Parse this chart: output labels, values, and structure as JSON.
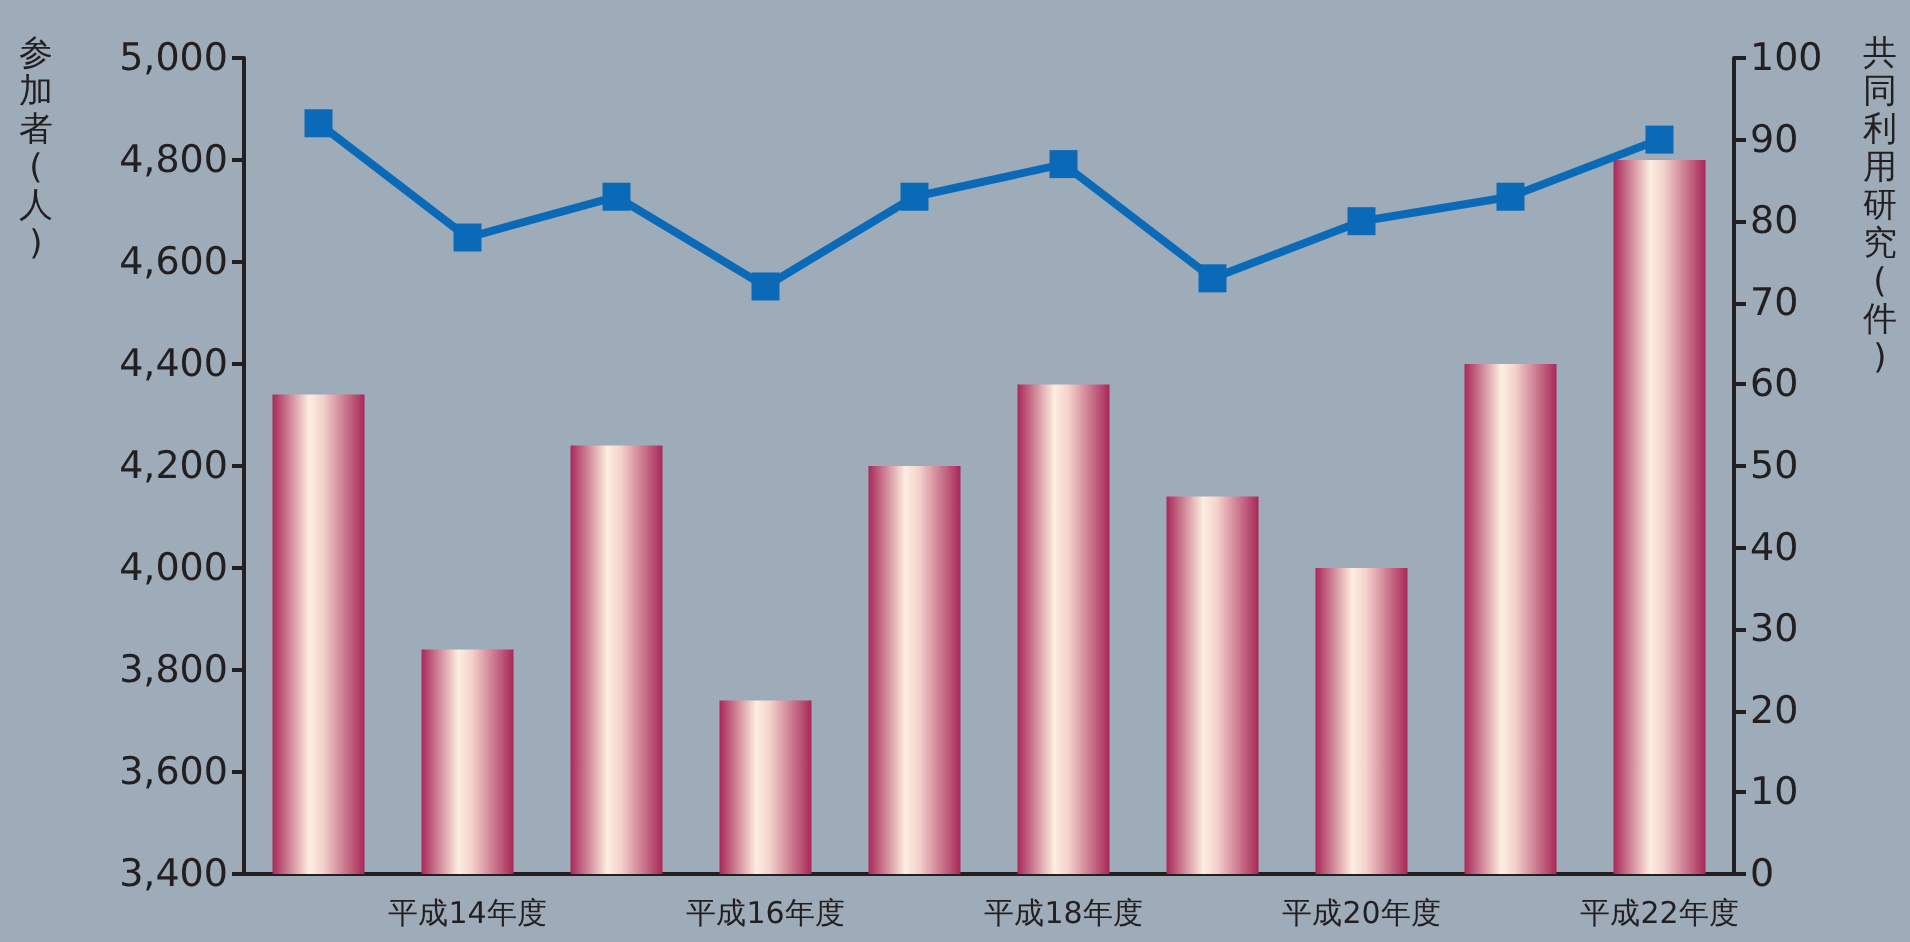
{
  "chart_data": {
    "type": "bar",
    "ylabel": "参加者(人)",
    "y2label": "共同利用研究(件)",
    "categories": [
      null,
      "平成14年度",
      null,
      "平成16年度",
      null,
      "平成18年度",
      null,
      "平成20年度",
      null,
      "平成22年度"
    ],
    "series": [
      {
        "color": "#a82858",
        "values": [
          4340,
          3840,
          4240,
          3740,
          4200,
          4360,
          4140,
          4000,
          4400,
          4800
        ]
      },
      {
        "type": "line",
        "axis": "y2",
        "color": "#0a6ab8",
        "marker": "square",
        "values": [
          92,
          78,
          83,
          72,
          83,
          87,
          73,
          80,
          83,
          90
        ]
      }
    ],
    "ylim": [
      3400,
      5000
    ],
    "yticks": [
      {
        "value": 3400,
        "label": "3,400"
      },
      {
        "value": 3600,
        "label": "3,600"
      },
      {
        "value": 3800,
        "label": "3,800"
      },
      {
        "value": 4000,
        "label": "4,000"
      },
      {
        "value": 4200,
        "label": "4,200"
      },
      {
        "value": 4400,
        "label": "4,400"
      },
      {
        "value": 4600,
        "label": "4,600"
      },
      {
        "value": 4800,
        "label": "4,800"
      },
      {
        "value": 5000,
        "label": "5,000"
      }
    ],
    "y2lim": [
      0,
      100
    ],
    "y2ticks": [
      0,
      10,
      20,
      30,
      40,
      50,
      60,
      70,
      80,
      90,
      100
    ],
    "grid": false
  }
}
